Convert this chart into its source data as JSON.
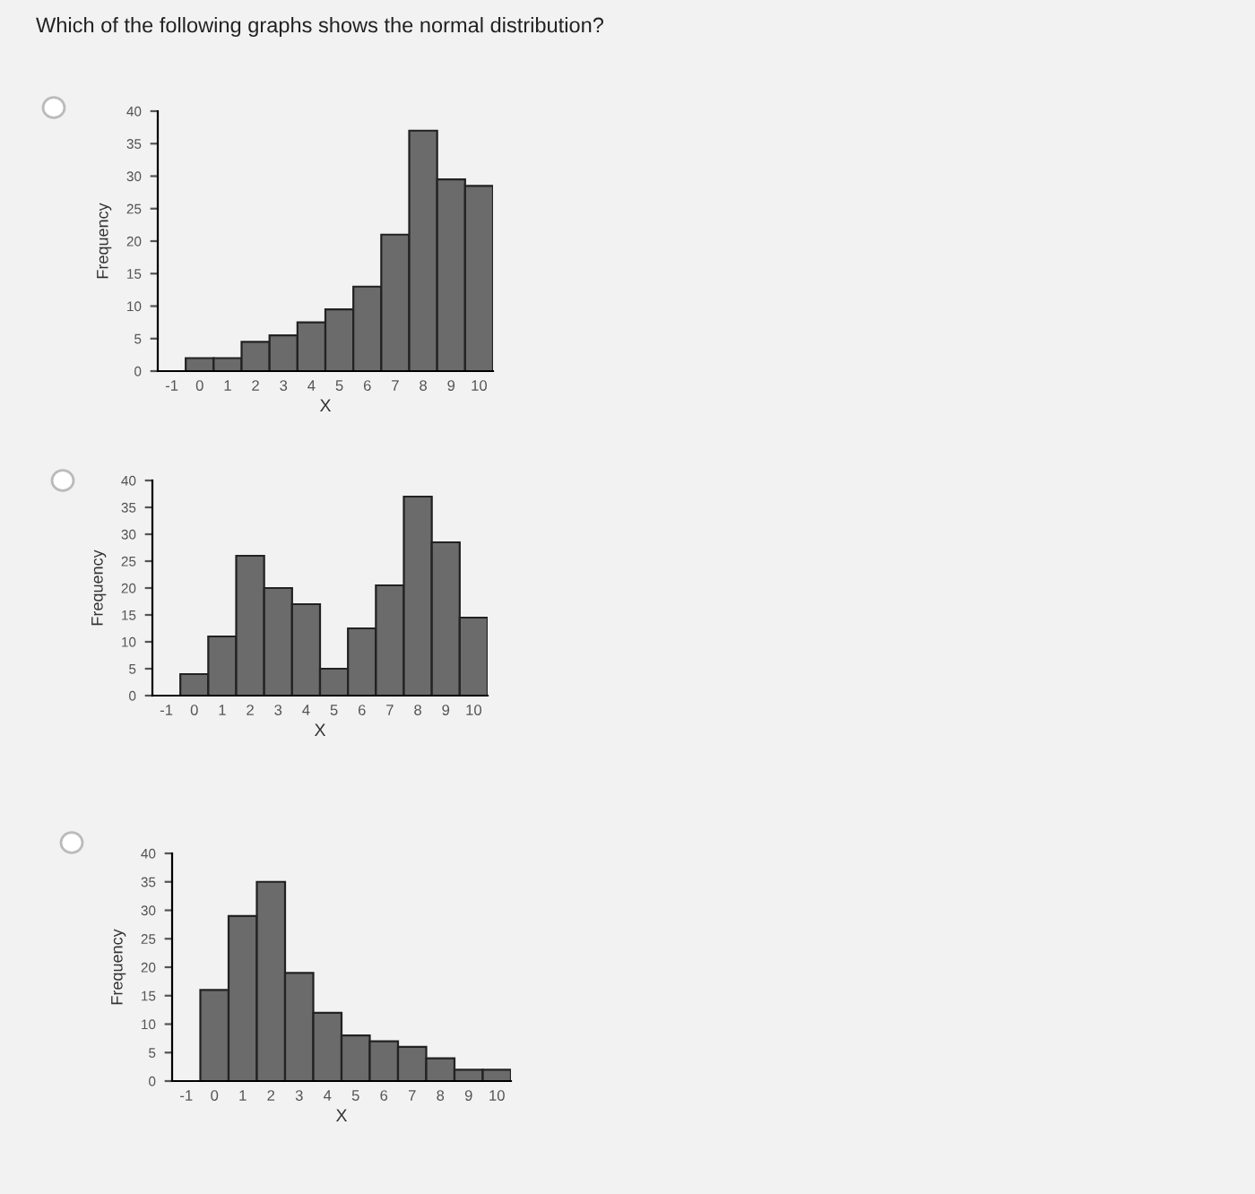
{
  "chart_data": [
    {
      "type": "histogram",
      "title": "Which of the following graphs shows the normal distribution?",
      "xlabel": "X",
      "ylabel": "Frequency",
      "bins": [
        -0.5,
        0.5,
        1.5,
        2.5,
        3.5,
        4.5,
        5.5,
        6.5,
        7.5,
        8.5,
        9.5,
        10.5
      ],
      "values": [
        2,
        2,
        4.5,
        5.5,
        7.5,
        9.5,
        13,
        21,
        37,
        29.5,
        28.5
      ],
      "color": "#6b6b6b",
      "xlim": [
        -1.5,
        10.5
      ],
      "xticks": [
        -1,
        0,
        1,
        2,
        3,
        4,
        5,
        6,
        7,
        8,
        9,
        10
      ],
      "ylim": [
        0,
        40
      ],
      "yticks": [
        0,
        5,
        10,
        15,
        20,
        25,
        30,
        35,
        40
      ],
      "grid": false
    },
    {
      "type": "histogram",
      "xlabel": "X",
      "ylabel": "Frequency",
      "bins": [
        -0.5,
        0.5,
        1.5,
        2.5,
        3.5,
        4.5,
        5.5,
        6.5,
        7.5,
        8.5,
        9.5,
        10.5
      ],
      "values": [
        4,
        11,
        26,
        20,
        17,
        5,
        12.5,
        20.5,
        37,
        28.5,
        14.5
      ],
      "color": "#6b6b6b",
      "xlim": [
        -1.5,
        10.5
      ],
      "xticks": [
        -1,
        0,
        1,
        2,
        3,
        4,
        5,
        6,
        7,
        8,
        9,
        10
      ],
      "ylim": [
        0,
        40
      ],
      "yticks": [
        0,
        5,
        10,
        15,
        20,
        25,
        30,
        35,
        40
      ],
      "grid": false
    },
    {
      "type": "histogram",
      "xlabel": "X",
      "ylabel": "Frequency",
      "bins": [
        -0.5,
        0.5,
        1.5,
        2.5,
        3.5,
        4.5,
        5.5,
        6.5,
        7.5,
        8.5,
        9.5,
        10.5
      ],
      "values": [
        16,
        29,
        35,
        19,
        12,
        8,
        7,
        6,
        4,
        2,
        2
      ],
      "color": "#6b6b6b",
      "xlim": [
        -1.5,
        10.5
      ],
      "xticks": [
        -1,
        0,
        1,
        2,
        3,
        4,
        5,
        6,
        7,
        8,
        9,
        10
      ],
      "ylim": [
        0,
        40
      ],
      "yticks": [
        0,
        5,
        10,
        15,
        20,
        25,
        30,
        35,
        40
      ],
      "grid": false
    }
  ]
}
